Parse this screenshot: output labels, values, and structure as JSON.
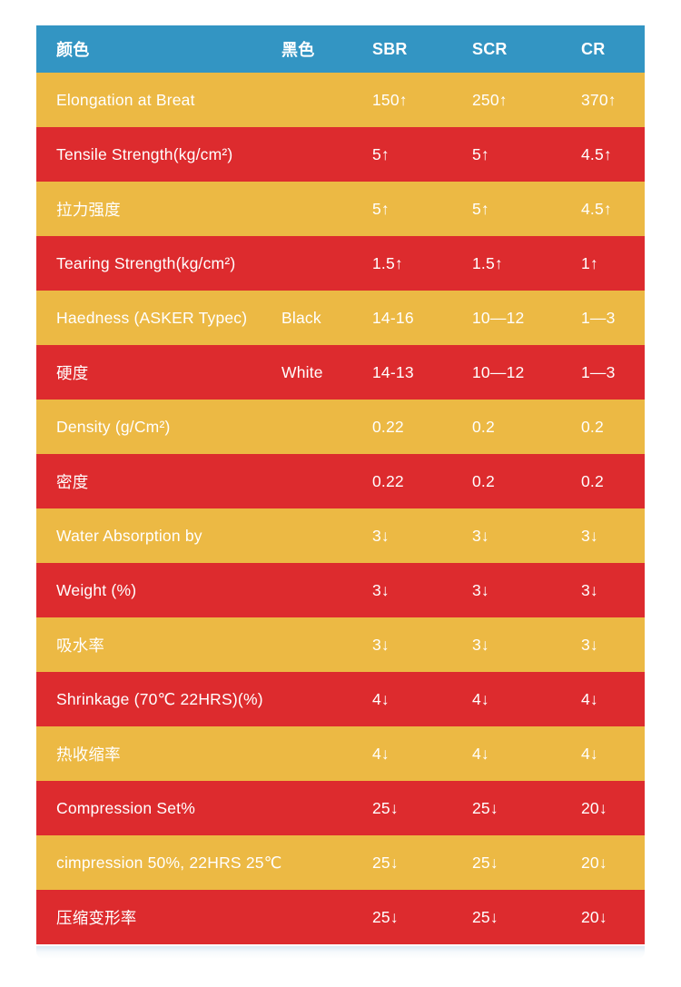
{
  "colors": {
    "header_bg": "#3395c3",
    "row_gold": "#ecb944",
    "row_red": "#dd2b2e",
    "text": "#ffffff"
  },
  "table": {
    "columns": [
      {
        "key": "label",
        "label": "颜色"
      },
      {
        "key": "black",
        "label": "黑色"
      },
      {
        "key": "sbr",
        "label": "SBR"
      },
      {
        "key": "scr",
        "label": "SCR"
      },
      {
        "key": "cr",
        "label": "CR"
      }
    ],
    "rows": [
      {
        "label": "Elongation at Breat",
        "black": "",
        "sbr": "150↑",
        "scr": "250↑",
        "cr": "370↑"
      },
      {
        "label": "Tensile Strength(kg/cm²)",
        "black": "",
        "sbr": "5↑",
        "scr": "5↑",
        "cr": "4.5↑"
      },
      {
        "label": "拉力强度",
        "black": "",
        "sbr": "5↑",
        "scr": "5↑",
        "cr": "4.5↑"
      },
      {
        "label": "Tearing Strength(kg/cm²)",
        "black": "",
        "sbr": "1.5↑",
        "scr": "1.5↑",
        "cr": "1↑"
      },
      {
        "label": "Haedness (ASKER Typec)",
        "black": "Black",
        "sbr": "14-16",
        "scr": "10—12",
        "cr": "1—3"
      },
      {
        "label": "硬度",
        "black": "White",
        "sbr": "14-13",
        "scr": "10—12",
        "cr": "1—3"
      },
      {
        "label": "Density (g/Cm²)",
        "black": "",
        "sbr": "0.22",
        "scr": "0.2",
        "cr": "0.2"
      },
      {
        "label": "密度",
        "black": "",
        "sbr": "0.22",
        "scr": "0.2",
        "cr": "0.2"
      },
      {
        "label": "Water Absorption by",
        "black": "",
        "sbr": "3↓",
        "scr": "3↓",
        "cr": "3↓"
      },
      {
        "label": "Weight (%)",
        "black": "",
        "sbr": "3↓",
        "scr": "3↓",
        "cr": "3↓"
      },
      {
        "label": "吸水率",
        "black": "",
        "sbr": "3↓",
        "scr": "3↓",
        "cr": "3↓"
      },
      {
        "label": "Shrinkage (70℃ 22HRS)(%)",
        "black": "",
        "sbr": "4↓",
        "scr": "4↓",
        "cr": "4↓"
      },
      {
        "label": "热收缩率",
        "black": "",
        "sbr": "4↓",
        "scr": "4↓",
        "cr": "4↓"
      },
      {
        "label": "Compression Set%",
        "black": "",
        "sbr": "25↓",
        "scr": "25↓",
        "cr": "20↓"
      },
      {
        "label": "cimpression 50%, 22HRS 25℃",
        "black": "",
        "sbr": "25↓",
        "scr": "25↓",
        "cr": "20↓"
      },
      {
        "label": "压缩变形率",
        "black": "",
        "sbr": "25↓",
        "scr": "25↓",
        "cr": "20↓"
      }
    ]
  }
}
